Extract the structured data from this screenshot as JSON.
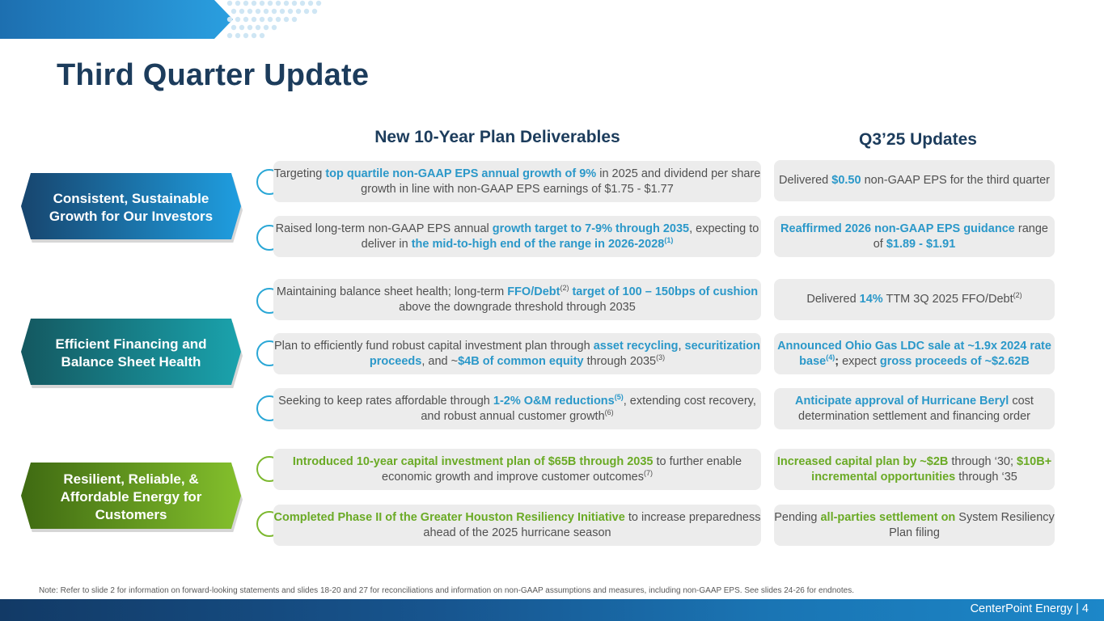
{
  "page": {
    "title": "Third Quarter Update",
    "col_left": "New 10-Year Plan Deliverables",
    "col_right": "Q3’25 Updates",
    "note": "Note: Refer to slide 2 for information on forward-looking statements and slides 18-20 and 27 for reconciliations and information on non-GAAP assumptions and measures, including non-GAAP EPS. See slides 24-26 for endnotes.",
    "footer": "CenterPoint Energy | 4"
  },
  "colors": {
    "blue_accent": "#2b98c9",
    "green_accent": "#6aaa25",
    "navy": "#1c3c5c"
  },
  "pillars": [
    {
      "label": "Consistent, Sustainable Growth for Our Investors"
    },
    {
      "label": "Efficient Financing and Balance Sheet Health"
    },
    {
      "label": "Resilient, Reliable, & Affordable Energy for Customers"
    }
  ],
  "rows": [
    {
      "left": [
        {
          "t": "Targeting "
        },
        {
          "t": "top quartile non-GAAP EPS annual growth of 9%",
          "s": "b"
        },
        {
          "t": " in 2025 and dividend per share growth in line with non-GAAP EPS earnings of $1.75 - $1.77"
        }
      ],
      "right": [
        {
          "t": "Delivered "
        },
        {
          "t": "$0.50",
          "s": "b"
        },
        {
          "t": " non-GAAP EPS for the third quarter"
        }
      ]
    },
    {
      "left": [
        {
          "t": "Raised long-term non-GAAP EPS annual "
        },
        {
          "t": "growth target to 7-9% through 2035",
          "s": "b"
        },
        {
          "t": ", expecting to deliver in "
        },
        {
          "t": "the mid-to-high end of the range in 2026-2028",
          "s": "b"
        },
        {
          "t": "(1)",
          "s": "sup-b"
        }
      ],
      "right": [
        {
          "t": "Reaffirmed 2026 non-GAAP EPS guidance",
          "s": "b"
        },
        {
          "t": " range of "
        },
        {
          "t": "$1.89 - $1.91",
          "s": "b"
        }
      ]
    },
    {
      "left": [
        {
          "t": "Maintaining balance sheet health; long-term "
        },
        {
          "t": "FFO/Debt",
          "s": "b"
        },
        {
          "t": "(2)",
          "s": "sup"
        },
        {
          "t": " target of 100 – 150bps of cushion",
          "s": "b"
        },
        {
          "t": " above the downgrade threshold through 2035"
        }
      ],
      "right": [
        {
          "t": "Delivered "
        },
        {
          "t": "14%",
          "s": "b"
        },
        {
          "t": " TTM 3Q 2025 FFO/Debt"
        },
        {
          "t": "(2)",
          "s": "sup"
        }
      ]
    },
    {
      "left": [
        {
          "t": "Plan to efficiently fund robust capital investment plan through "
        },
        {
          "t": "asset recycling",
          "s": "b"
        },
        {
          "t": ", "
        },
        {
          "t": "securitization proceeds",
          "s": "b"
        },
        {
          "t": ", and ~"
        },
        {
          "t": "$4B of common equity",
          "s": "b"
        },
        {
          "t": " through 2035"
        },
        {
          "t": "(3)",
          "s": "sup"
        }
      ],
      "right": [
        {
          "t": "Announced Ohio Gas LDC sale at ~1.9x 2024 rate base",
          "s": "b"
        },
        {
          "t": "(4)",
          "s": "sup-b"
        },
        {
          "t": ";",
          "s": "k"
        },
        {
          "t": " expect "
        },
        {
          "t": "gross proceeds of ~$2.62B",
          "s": "b"
        }
      ]
    },
    {
      "left": [
        {
          "t": "Seeking to keep rates affordable through "
        },
        {
          "t": "1-2% O&M reductions",
          "s": "b"
        },
        {
          "t": "(5)",
          "s": "sup-b"
        },
        {
          "t": ", extending cost recovery, and robust annual customer growth"
        },
        {
          "t": "(6)",
          "s": "sup"
        }
      ],
      "right": [
        {
          "t": "Anticipate approval of Hurricane Beryl",
          "s": "b"
        },
        {
          "t": " cost determination settlement and financing order"
        }
      ]
    },
    {
      "left": [
        {
          "t": "Introduced 10-year capital investment plan of $65B through 2035",
          "s": "g"
        },
        {
          "t": " to further enable economic growth and improve customer outcomes"
        },
        {
          "t": "(7)",
          "s": "sup"
        }
      ],
      "right": [
        {
          "t": "Increased capital plan by ~$2B",
          "s": "g"
        },
        {
          "t": " through ‘30; "
        },
        {
          "t": "$10B+ incremental opportunities",
          "s": "g"
        },
        {
          "t": " through ‘35"
        }
      ]
    },
    {
      "left": [
        {
          "t": "Completed Phase II of the Greater Houston Resiliency Initiative",
          "s": "g"
        },
        {
          "t": " to increase preparedness ahead of the 2025 hurricane season"
        }
      ],
      "right": [
        {
          "t": "Pending "
        },
        {
          "t": "all-parties settlement on",
          "s": "g"
        },
        {
          "t": " System Resiliency Plan filing"
        }
      ]
    }
  ]
}
